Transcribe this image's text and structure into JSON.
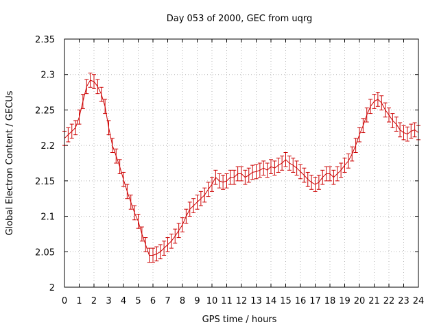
{
  "chart_data": {
    "type": "line",
    "title": "Day 053 of 2000, GEC from uqrg",
    "xlabel": "GPS time / hours",
    "ylabel": "Global Electron Content / GECUs",
    "xlim": [
      0,
      24
    ],
    "ylim": [
      2,
      2.35
    ],
    "xticks": [
      "0",
      "1",
      "2",
      "3",
      "4",
      "5",
      "6",
      "7",
      "8",
      "9",
      "10",
      "11",
      "12",
      "13",
      "14",
      "15",
      "16",
      "17",
      "18",
      "19",
      "20",
      "21",
      "22",
      "23",
      "24"
    ],
    "yticks": [
      "2",
      "2.05",
      "2.1",
      "2.15",
      "2.2",
      "2.25",
      "2.3",
      "2.35"
    ],
    "grid": true,
    "series_color": "#cc0000",
    "error_bar": 0.01,
    "x": [
      0,
      0.25,
      0.5,
      0.75,
      1,
      1.25,
      1.5,
      1.75,
      2,
      2.25,
      2.5,
      2.75,
      3,
      3.25,
      3.5,
      3.75,
      4,
      4.25,
      4.5,
      4.75,
      5,
      5.25,
      5.5,
      5.75,
      6,
      6.25,
      6.5,
      6.75,
      7,
      7.25,
      7.5,
      7.75,
      8,
      8.25,
      8.5,
      8.75,
      9,
      9.25,
      9.5,
      9.75,
      10,
      10.25,
      10.5,
      10.75,
      11,
      11.25,
      11.5,
      11.75,
      12,
      12.25,
      12.5,
      12.75,
      13,
      13.25,
      13.5,
      13.75,
      14,
      14.25,
      14.5,
      14.75,
      15,
      15.25,
      15.5,
      15.75,
      16,
      16.25,
      16.5,
      16.75,
      17,
      17.25,
      17.5,
      17.75,
      18,
      18.25,
      18.5,
      18.75,
      19,
      19.25,
      19.5,
      19.75,
      20,
      20.25,
      20.5,
      20.75,
      21,
      21.25,
      21.5,
      21.75,
      22,
      22.25,
      22.5,
      22.75,
      23,
      23.25,
      23.5,
      23.75,
      24
    ],
    "y": [
      2.21,
      2.215,
      2.22,
      2.225,
      2.24,
      2.262,
      2.283,
      2.292,
      2.29,
      2.283,
      2.272,
      2.255,
      2.225,
      2.2,
      2.185,
      2.17,
      2.152,
      2.135,
      2.12,
      2.105,
      2.093,
      2.075,
      2.06,
      2.045,
      2.045,
      2.047,
      2.05,
      2.055,
      2.06,
      2.065,
      2.072,
      2.08,
      2.088,
      2.1,
      2.11,
      2.115,
      2.12,
      2.125,
      2.13,
      2.138,
      2.145,
      2.155,
      2.15,
      2.148,
      2.15,
      2.155,
      2.155,
      2.16,
      2.16,
      2.155,
      2.158,
      2.162,
      2.163,
      2.165,
      2.168,
      2.165,
      2.17,
      2.168,
      2.172,
      2.175,
      2.18,
      2.175,
      2.172,
      2.168,
      2.163,
      2.158,
      2.152,
      2.148,
      2.145,
      2.148,
      2.155,
      2.16,
      2.16,
      2.155,
      2.16,
      2.165,
      2.172,
      2.178,
      2.188,
      2.2,
      2.215,
      2.228,
      2.243,
      2.255,
      2.262,
      2.265,
      2.26,
      2.25,
      2.243,
      2.235,
      2.23,
      2.222,
      2.218,
      2.216,
      2.22,
      2.222,
      2.218
    ]
  }
}
